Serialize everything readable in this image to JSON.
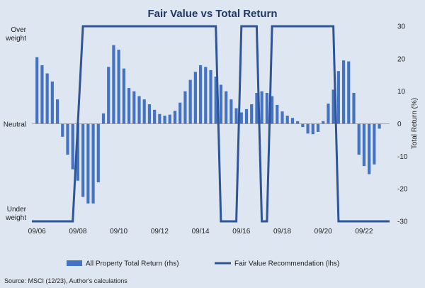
{
  "chart_data": {
    "type": "bar",
    "title": "Fair Value vs Total Return",
    "source": "Source: MSCI (12/23), Author's calculations",
    "x_tick_labels": [
      "09/06",
      "09/08",
      "09/10",
      "09/12",
      "09/14",
      "09/16",
      "09/18",
      "09/20",
      "09/22"
    ],
    "left_axis": {
      "labels": [
        {
          "text": "Over weight",
          "lines": [
            "Over",
            "weight"
          ],
          "value": 1
        },
        {
          "text": "Neutral",
          "lines": [
            "Neutral"
          ],
          "value": 0
        },
        {
          "text": "Under weight",
          "lines": [
            "Under",
            "weight"
          ],
          "value": -1
        }
      ],
      "ylim": [
        -1,
        1
      ]
    },
    "right_axis": {
      "label": "Total Return (%)",
      "ylim": [
        -30,
        30
      ],
      "ticks": [
        30,
        20,
        10,
        0,
        -10,
        -20,
        -30
      ]
    },
    "series": [
      {
        "name": "All Property Total Return (rhs)",
        "type": "bar",
        "axis": "right",
        "color": "#4472c4",
        "start": "2006-09",
        "step_months": 3,
        "values": [
          20.5,
          18,
          15.5,
          13,
          7.5,
          -4,
          -9.5,
          -14,
          -17.5,
          -22.5,
          -24.5,
          -24.5,
          -18,
          3.2,
          17.5,
          24.2,
          22.8,
          17,
          11,
          10,
          8.5,
          7.5,
          6,
          4.3,
          3,
          2.5,
          2.8,
          4,
          6.5,
          10,
          13.5,
          16,
          18,
          17.5,
          16.5,
          14.5,
          12,
          10,
          7.5,
          4.8,
          3.5,
          4.5,
          6,
          9.5,
          10,
          9.5,
          8.5,
          5.8,
          3.8,
          2.5,
          1.8,
          0.8,
          -1,
          -3,
          -3.2,
          -2.5,
          0.8,
          6.2,
          10.5,
          16.2,
          19.5,
          19.2,
          9.5,
          -9.5,
          -13,
          -15.5,
          -12.5,
          -1.5
        ]
      },
      {
        "name": "Fair Value Recommendation (lhs)",
        "type": "line",
        "axis": "left",
        "color": "#2f5597",
        "points": [
          {
            "x": "2006-06",
            "y": -1
          },
          {
            "x": "2008-06",
            "y": -1
          },
          {
            "x": "2008-12",
            "y": 1
          },
          {
            "x": "2015-06",
            "y": 1
          },
          {
            "x": "2015-09",
            "y": -1
          },
          {
            "x": "2016-06",
            "y": -1
          },
          {
            "x": "2016-09",
            "y": 1
          },
          {
            "x": "2017-06",
            "y": 1
          },
          {
            "x": "2017-09",
            "y": -1
          },
          {
            "x": "2017-12",
            "y": -1
          },
          {
            "x": "2018-03",
            "y": 1
          },
          {
            "x": "2021-03",
            "y": 1
          },
          {
            "x": "2021-06",
            "y": -1
          },
          {
            "x": "2023-12",
            "y": -1
          }
        ]
      }
    ],
    "legend": {
      "placement": "bottom"
    },
    "grid": false
  }
}
